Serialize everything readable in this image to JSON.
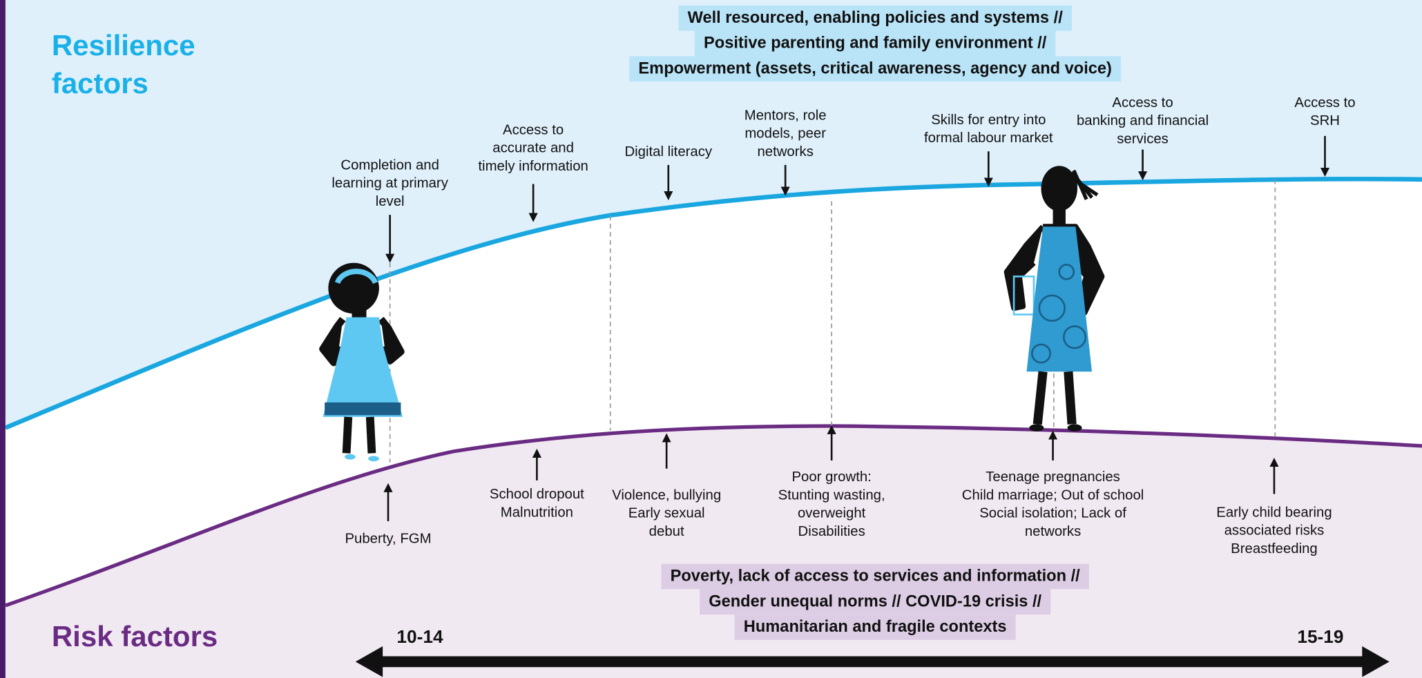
{
  "resilience": {
    "title": [
      "Resilience",
      "factors"
    ],
    "banner": [
      "Well resourced, enabling policies and systems //",
      "Positive parenting and family environment //",
      "Empowerment (assets, critical awareness, agency and voice)"
    ],
    "factors": [
      {
        "lines": [
          "Completion and",
          "learning at primary",
          "level"
        ]
      },
      {
        "lines": [
          "Access to",
          "accurate and",
          "timely information"
        ]
      },
      {
        "lines": [
          "Digital literacy"
        ]
      },
      {
        "lines": [
          "Mentors, role",
          "models, peer",
          "networks"
        ]
      },
      {
        "lines": [
          "Skills for entry into",
          "formal labour market"
        ]
      },
      {
        "lines": [
          "Access to",
          "banking and financial",
          "services"
        ]
      },
      {
        "lines": [
          "Access to",
          "SRH"
        ]
      }
    ]
  },
  "risk": {
    "title": "Risk factors",
    "banner": [
      "Poverty, lack of access to services and information //",
      "Gender unequal norms // COVID-19 crisis //",
      "Humanitarian and fragile contexts"
    ],
    "factors": [
      {
        "lines": [
          "Puberty, FGM"
        ]
      },
      {
        "lines": [
          "School dropout",
          "Malnutrition"
        ]
      },
      {
        "lines": [
          "Violence, bullying",
          "Early sexual",
          "debut"
        ]
      },
      {
        "lines": [
          "Poor growth:",
          "Stunting wasting,",
          "overweight",
          "Disabilities"
        ]
      },
      {
        "lines": [
          "Teenage pregnancies",
          "Child marriage; Out of school",
          "Social isolation; Lack of",
          "networks"
        ]
      },
      {
        "lines": [
          "Early child bearing",
          "associated risks",
          "Breastfeeding"
        ]
      }
    ]
  },
  "age_axis": {
    "start": "10-14",
    "end": "15-19"
  }
}
